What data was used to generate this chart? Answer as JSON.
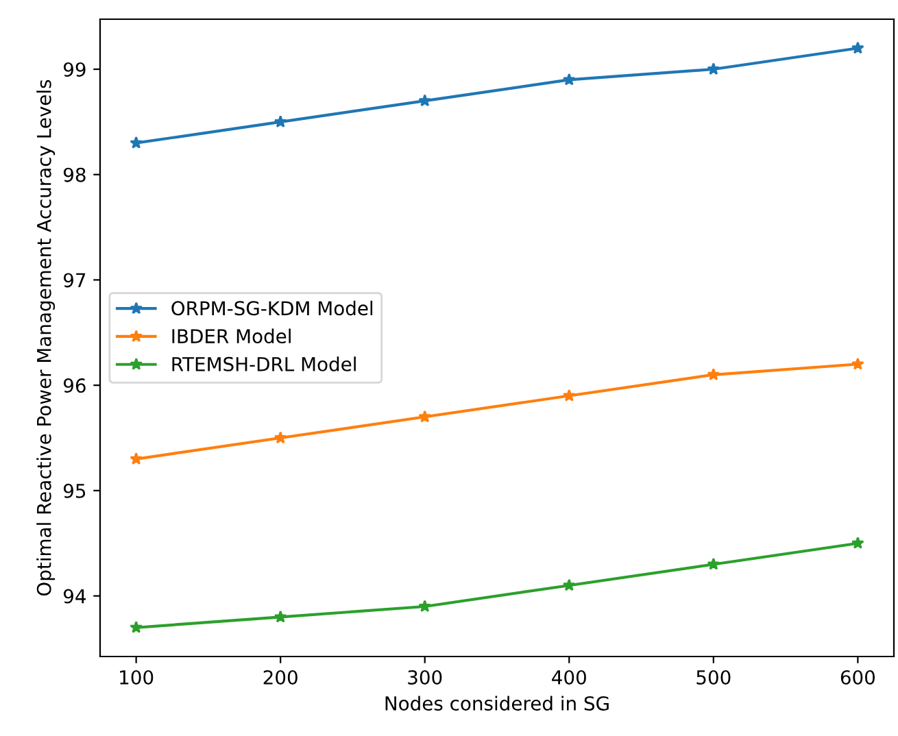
{
  "chart_data": {
    "type": "line",
    "xlabel": "Nodes considered in SG",
    "ylabel": "Optimal Reactive Power Management Accuracy Levels",
    "x": [
      100,
      200,
      300,
      400,
      500,
      600
    ],
    "series": [
      {
        "name": "ORPM-SG-KDM Model",
        "color": "#1f77b4",
        "values": [
          98.3,
          98.5,
          98.7,
          98.9,
          99.0,
          99.2
        ]
      },
      {
        "name": "IBDER Model",
        "color": "#ff7f0e",
        "values": [
          95.3,
          95.5,
          95.7,
          95.9,
          96.1,
          96.2
        ]
      },
      {
        "name": "RTEMSH-DRL Model",
        "color": "#2ca02c",
        "values": [
          93.7,
          93.8,
          93.9,
          94.1,
          94.3,
          94.5
        ]
      }
    ],
    "xlim": [
      75,
      625
    ],
    "xticks": [
      100,
      200,
      300,
      400,
      500,
      600
    ],
    "ylim": [
      93.425,
      99.475
    ],
    "yticks": [
      94,
      95,
      96,
      97,
      98,
      99
    ],
    "marker": "star",
    "line_style": "solid",
    "legend": "left",
    "grid": false
  }
}
